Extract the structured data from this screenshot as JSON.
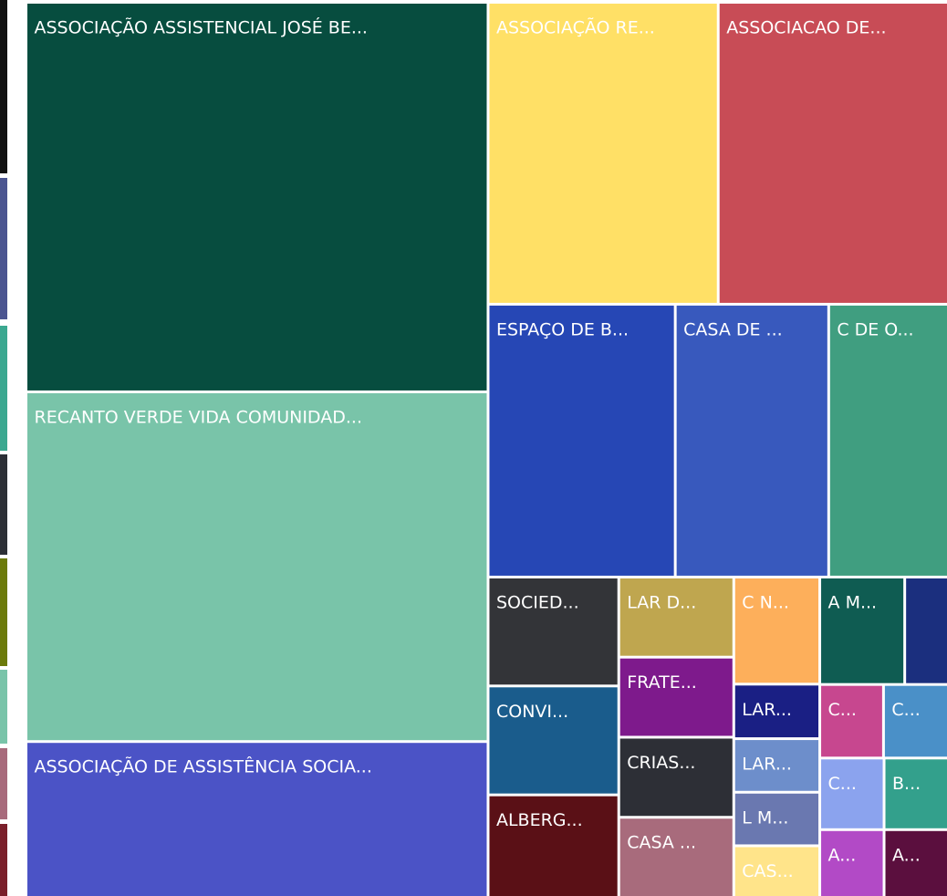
{
  "chart_data": {
    "type": "treemap",
    "categories": [
      "ASSOCIAÇÃO ASSISTENCIAL JOSÉ BE...",
      "RECANTO VERDE VIDA COMUNIDAD...",
      "ASSOCIAÇÃO DE ASSISTÊNCIA SOCIA...",
      "ASSOCIAÇÃO RE...",
      "ASSOCIACAO DE...",
      "ESPAÇO DE B...",
      "CASA DE ...",
      "C DE O...",
      "SOCIED...",
      "CONVI...",
      "ALBERG...",
      "LAR D...",
      "FRATE...",
      "CRIAS...",
      "CASA ...",
      "C N...",
      "LAR...",
      "LAR...",
      "L M...",
      "CAS...",
      "A M...",
      null,
      "C...",
      "C...",
      "C...",
      "B...",
      "A...",
      "A..."
    ],
    "values": [
      215,
      193,
      86,
      83,
      83,
      61,
      50,
      39,
      17,
      17,
      16,
      11,
      11,
      11,
      11,
      11,
      5.6,
      5.5,
      5.5,
      5.3,
      10.9,
      5.6,
      5.6,
      5.7,
      5.5,
      5.5,
      5.2,
      5.2
    ],
    "colors": [
      "#074d3f",
      "#79c4a9",
      "#4b53c6",
      "#ffe066",
      "#c84c56",
      "#2647b5",
      "#3859bd",
      "#409e80",
      "#333438",
      "#1a5c8c",
      "#5a1016",
      "#bfa64f",
      "#7e1a8c",
      "#2d2f36",
      "#a86b7c",
      "#fdaf5b",
      "#1a1f84",
      "#6d8ecb",
      "#6a78b0",
      "#ffe48a",
      "#0f5c52",
      "#1b2f7e",
      "#c7478f",
      "#4a90c8",
      "#8ba3ee",
      "#33a08c",
      "#b24ac6",
      "#5b0f3e"
    ]
  }
}
